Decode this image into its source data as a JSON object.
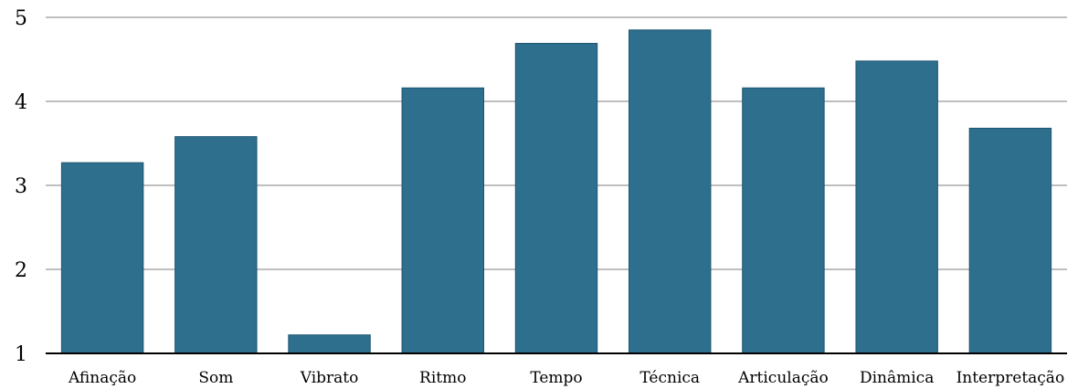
{
  "chart_data": {
    "type": "bar",
    "categories": [
      "Afinação",
      "Som",
      "Vibrato",
      "Ritmo",
      "Tempo",
      "Técnica",
      "Articulação",
      "Dinâmica",
      "Interpretação"
    ],
    "values": [
      3.27,
      3.58,
      1.22,
      4.16,
      4.69,
      4.85,
      4.16,
      4.48,
      3.68
    ],
    "ylim": [
      1,
      5
    ],
    "yticks": [
      1,
      2,
      3,
      4,
      5
    ],
    "grid": true,
    "legend": "none",
    "bar_color": "#2e6f8e",
    "grid_color": "#bfbfbf",
    "axis_color": "#000000"
  }
}
